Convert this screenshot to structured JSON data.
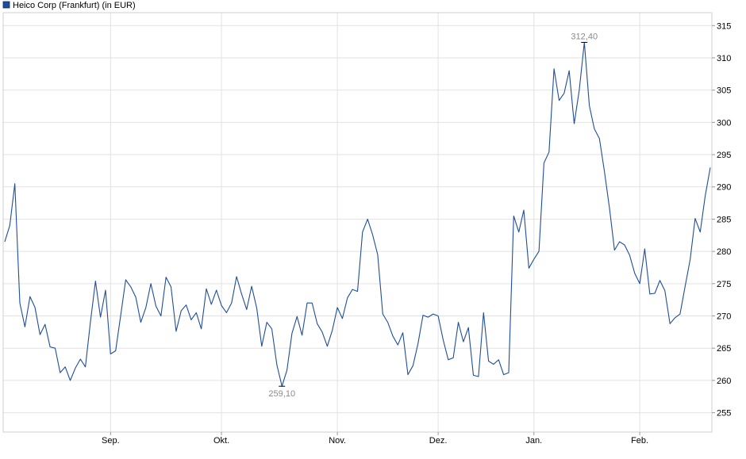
{
  "chart_data": {
    "type": "line",
    "title": "",
    "legend": {
      "label": "Heico Corp (Frankfurt)  (in EUR)",
      "color": "#1f4e99",
      "position": "top-left"
    },
    "xlabel": "",
    "ylabel": "",
    "ylim": [
      252,
      317
    ],
    "y_ticks": [
      255,
      260,
      265,
      270,
      275,
      280,
      285,
      290,
      295,
      300,
      305,
      310,
      315
    ],
    "x_ticks": [
      {
        "label": "Sep.",
        "index": 21
      },
      {
        "label": "Okt.",
        "index": 43
      },
      {
        "label": "Nov.",
        "index": 66
      },
      {
        "label": "Dez.",
        "index": 86
      },
      {
        "label": "Jan.",
        "index": 105
      },
      {
        "label": "Feb.",
        "index": 126
      }
    ],
    "grid": true,
    "series": [
      {
        "color": "#1f4e99",
        "values": [
          281.5,
          284.0,
          290.5,
          272.0,
          268.3,
          273.0,
          271.3,
          267.1,
          268.7,
          265.2,
          265.0,
          261.2,
          262.1,
          260.0,
          261.9,
          263.3,
          262.1,
          269.0,
          275.4,
          269.8,
          274.0,
          264.1,
          264.6,
          270.0,
          275.6,
          274.5,
          272.9,
          269.0,
          271.3,
          275.0,
          271.5,
          270.0,
          276.0,
          274.5,
          267.6,
          270.8,
          271.7,
          269.4,
          270.5,
          268.0,
          274.2,
          271.8,
          274.0,
          271.6,
          270.5,
          272.0,
          276.1,
          273.4,
          271.0,
          274.6,
          271.2,
          265.3,
          269.0,
          268.0,
          262.4,
          259.1,
          261.6,
          267.3,
          269.9,
          267.0,
          272.0,
          272.0,
          268.8,
          267.5,
          265.3,
          267.8,
          271.3,
          269.6,
          272.8,
          274.1,
          273.8,
          283.0,
          285.0,
          282.6,
          279.5,
          270.3,
          269.0,
          266.9,
          265.5,
          267.4,
          260.9,
          262.3,
          265.7,
          270.1,
          269.8,
          270.3,
          270.0,
          266.3,
          263.2,
          263.5,
          269.0,
          266.0,
          268.2,
          260.8,
          260.6,
          270.5,
          263.0,
          262.5,
          263.2,
          260.9,
          261.2,
          285.5,
          283.0,
          286.4,
          277.4,
          278.8,
          280.0,
          293.7,
          295.4,
          308.3,
          303.4,
          304.5,
          308.0,
          299.8,
          305.0,
          312.4,
          302.6,
          299.0,
          297.5,
          292.4,
          286.7,
          280.2,
          281.5,
          281.0,
          279.4,
          276.6,
          275.0,
          280.4,
          273.4,
          273.5,
          275.5,
          273.9,
          268.8,
          269.7,
          270.3,
          274.6,
          278.7,
          285.1,
          283.0,
          288.6,
          293.0
        ]
      }
    ],
    "annotations": [
      {
        "label": "312,40",
        "value": 312.4,
        "index": 115
      },
      {
        "label": "259,10",
        "value": 259.1,
        "index": 55
      }
    ]
  }
}
